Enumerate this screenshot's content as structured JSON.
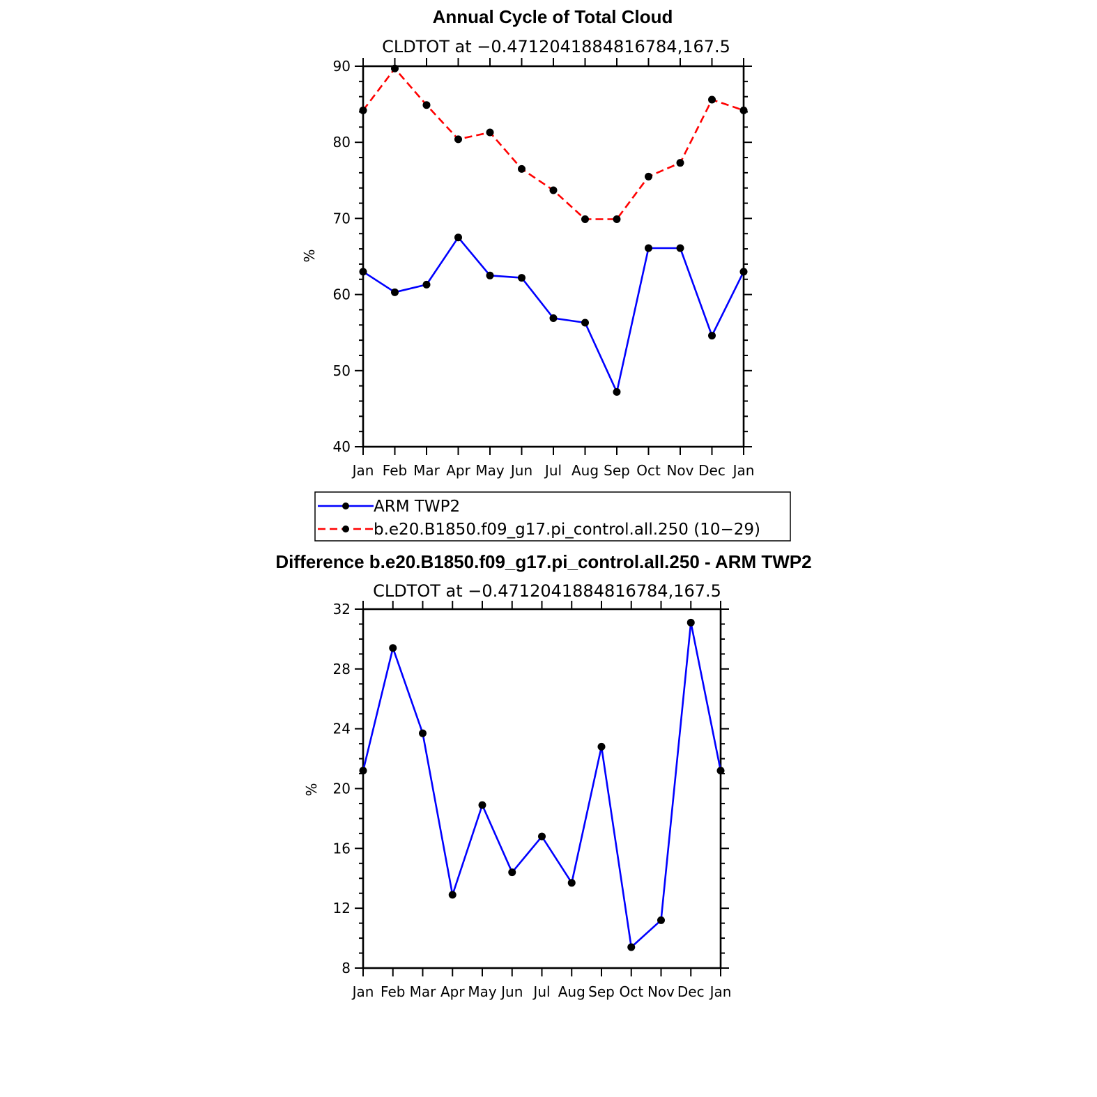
{
  "chart_data": [
    {
      "type": "line",
      "title": "Annual Cycle of Total Cloud",
      "subtitle": "CLDTOT at −0.4712041884816784,167.5",
      "ylabel": "%",
      "xlabel": "",
      "ylim": [
        40,
        90
      ],
      "yticks": [
        40,
        50,
        60,
        70,
        80,
        90
      ],
      "categories": [
        "Jan",
        "Feb",
        "Mar",
        "Apr",
        "May",
        "Jun",
        "Jul",
        "Aug",
        "Sep",
        "Oct",
        "Nov",
        "Dec",
        "Jan"
      ],
      "grid": false,
      "legend_position": "below",
      "series": [
        {
          "name": "ARM TWP2",
          "color": "#0000ff",
          "dash": "solid",
          "values": [
            63.0,
            60.3,
            61.3,
            67.5,
            62.5,
            62.2,
            56.9,
            56.3,
            47.2,
            66.1,
            66.1,
            54.6,
            63.0
          ]
        },
        {
          "name": "b.e20.B1850.f09_g17.pi_control.all.250 (10−29)",
          "color": "#ff0000",
          "dash": "dashed",
          "values": [
            84.2,
            89.7,
            84.9,
            80.4,
            81.3,
            76.5,
            73.7,
            69.9,
            69.9,
            75.5,
            77.3,
            85.6,
            84.2
          ]
        }
      ]
    },
    {
      "type": "line",
      "title": "Difference b.e20.B1850.f09_g17.pi_control.all.250 - ARM TWP2",
      "subtitle": "CLDTOT at −0.4712041884816784,167.5",
      "ylabel": "%",
      "xlabel": "",
      "ylim": [
        8,
        32
      ],
      "yticks": [
        8,
        12,
        16,
        20,
        24,
        28,
        32
      ],
      "categories": [
        "Jan",
        "Feb",
        "Mar",
        "Apr",
        "May",
        "Jun",
        "Jul",
        "Aug",
        "Sep",
        "Oct",
        "Nov",
        "Dec",
        "Jan"
      ],
      "grid": false,
      "series": [
        {
          "color": "#0000ff",
          "dash": "solid",
          "values": [
            21.2,
            29.4,
            23.7,
            12.9,
            18.9,
            14.4,
            16.8,
            13.7,
            22.8,
            9.4,
            11.2,
            31.1,
            21.2
          ]
        }
      ]
    }
  ]
}
